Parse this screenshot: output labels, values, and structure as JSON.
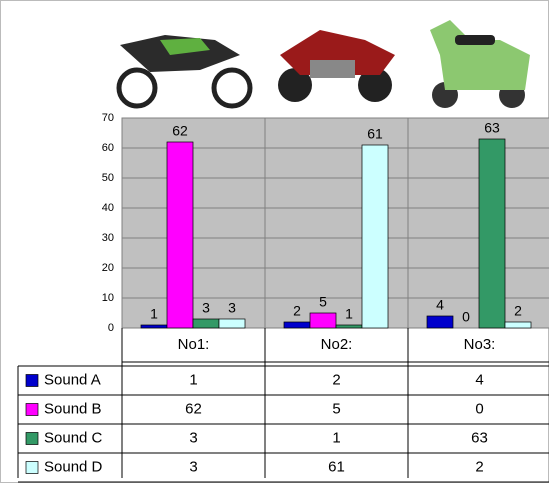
{
  "chart_data": {
    "type": "bar",
    "categories": [
      "No1:",
      "No2:",
      "No3:"
    ],
    "series": [
      {
        "name": "Sound A",
        "color": "#0000cc",
        "values": [
          1,
          2,
          4
        ]
      },
      {
        "name": "Sound B",
        "color": "#ff00ff",
        "values": [
          62,
          5,
          0
        ]
      },
      {
        "name": "Sound C",
        "color": "#339966",
        "values": [
          3,
          1,
          63
        ]
      },
      {
        "name": "Sound D",
        "color": "#ccffff",
        "values": [
          3,
          61,
          2
        ]
      }
    ],
    "ylim": [
      0,
      70
    ],
    "yticks": [
      0,
      10,
      20,
      30,
      40,
      50,
      60,
      70
    ],
    "grid": true
  }
}
